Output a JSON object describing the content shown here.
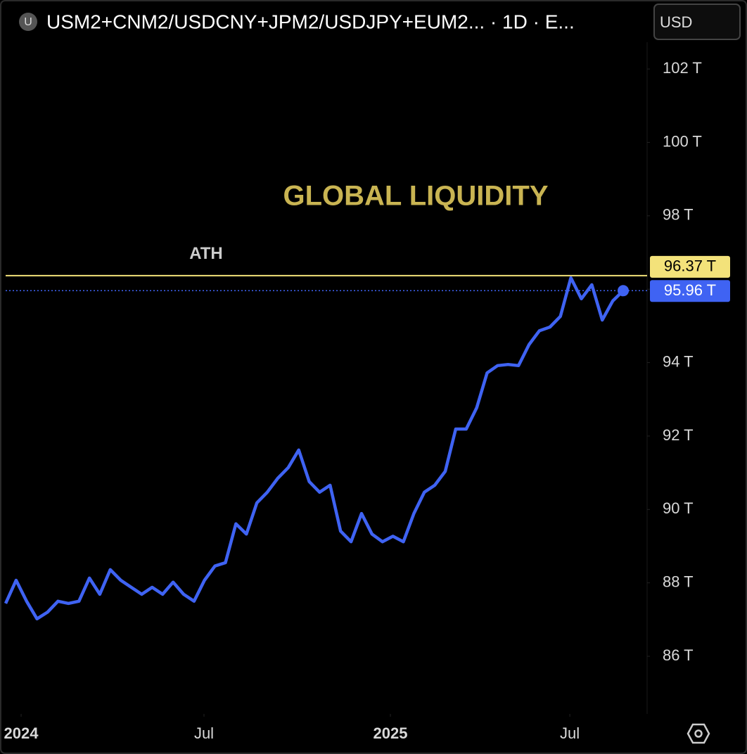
{
  "header": {
    "icon": "U",
    "symbol": "USM2+CNM2/USDCNY+JPM2/USDJPY+EUM2... · 1D · E...",
    "currency": "USD"
  },
  "chart_data": {
    "type": "line",
    "title": "GLOBAL LIQUIDITY",
    "series": [
      {
        "name": "Global liquidity",
        "color": "#3f63f3",
        "values": [
          87.44,
          88.07,
          87.5,
          87.02,
          87.2,
          87.5,
          87.44,
          87.5,
          88.13,
          87.69,
          88.36,
          88.07,
          87.88,
          87.69,
          87.88,
          87.69,
          88.02,
          87.69,
          87.5,
          88.07,
          88.46,
          88.55,
          89.61,
          89.33,
          90.18,
          90.47,
          90.85,
          91.14,
          91.62,
          90.76,
          90.47,
          90.66,
          89.41,
          89.12,
          89.89,
          89.33,
          89.12,
          89.27,
          89.12,
          89.89,
          90.47,
          90.66,
          91.04,
          92.19,
          92.19,
          92.77,
          93.72,
          93.92,
          93.95,
          93.92,
          94.49,
          94.87,
          94.97,
          95.26,
          96.31,
          95.74,
          96.12,
          95.16,
          95.68,
          95.96
        ]
      }
    ],
    "xlim": [
      0,
      59
    ],
    "xticks": [
      {
        "value": 1.48,
        "label": "2024"
      },
      {
        "value": 18.95,
        "label": "Jul"
      },
      {
        "value": 36.76,
        "label": "2025"
      },
      {
        "value": 53.9,
        "label": "Jul"
      }
    ],
    "ylim": [
      84.43,
      102.73
    ],
    "yticks": [
      {
        "value": 86,
        "label": "86 T"
      },
      {
        "value": 88,
        "label": "88 T"
      },
      {
        "value": 90,
        "label": "90 T"
      },
      {
        "value": 92,
        "label": "92 T"
      },
      {
        "value": 94,
        "label": "94 T"
      },
      {
        "value": 96,
        "label": "96 T"
      },
      {
        "value": 98,
        "label": "98 T"
      },
      {
        "value": 100,
        "label": "100 T"
      },
      {
        "value": 102,
        "label": "102 T"
      }
    ],
    "ath": {
      "label": "ATH",
      "value": 96.37,
      "value_label": "96.37 T",
      "color": "#f3e27a"
    },
    "last": {
      "value": 95.96,
      "value_label": "95.96 T",
      "color": "#3f63f3"
    }
  }
}
